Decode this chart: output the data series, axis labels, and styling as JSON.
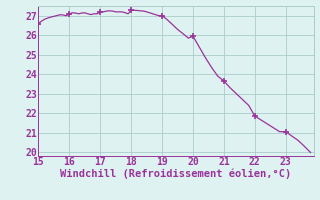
{
  "x": [
    15.0,
    15.1,
    15.2,
    15.3,
    15.4,
    15.5,
    15.6,
    15.7,
    15.8,
    15.9,
    16.0,
    16.1,
    16.2,
    16.3,
    16.4,
    16.5,
    16.6,
    16.7,
    16.8,
    16.9,
    17.0,
    17.1,
    17.2,
    17.3,
    17.4,
    17.5,
    17.6,
    17.7,
    17.8,
    17.9,
    18.0,
    18.1,
    18.2,
    18.3,
    18.4,
    18.5,
    18.6,
    18.7,
    18.8,
    18.9,
    19.0,
    19.15,
    19.3,
    19.5,
    19.7,
    19.85,
    20.0,
    20.2,
    20.4,
    20.6,
    20.8,
    21.0,
    21.2,
    21.4,
    21.6,
    21.8,
    22.0,
    22.2,
    22.4,
    22.6,
    22.8,
    23.0,
    23.2,
    23.4,
    23.6,
    23.8
  ],
  "y": [
    26.6,
    26.72,
    26.82,
    26.88,
    26.93,
    26.97,
    27.01,
    27.05,
    27.04,
    27.0,
    27.1,
    27.15,
    27.14,
    27.1,
    27.14,
    27.15,
    27.1,
    27.06,
    27.1,
    27.1,
    27.2,
    27.2,
    27.24,
    27.25,
    27.24,
    27.2,
    27.2,
    27.2,
    27.16,
    27.1,
    27.28,
    27.28,
    27.27,
    27.25,
    27.24,
    27.2,
    27.15,
    27.1,
    27.05,
    27.0,
    27.0,
    26.82,
    26.6,
    26.3,
    26.05,
    25.85,
    25.95,
    25.4,
    24.85,
    24.35,
    23.9,
    23.65,
    23.3,
    23.0,
    22.7,
    22.4,
    21.85,
    21.65,
    21.45,
    21.25,
    21.05,
    21.05,
    20.82,
    20.6,
    20.3,
    19.98
  ],
  "markers_x": [
    15.0,
    16.0,
    17.0,
    18.0,
    19.0,
    20.0,
    21.0,
    22.0,
    23.0
  ],
  "markers_y": [
    26.6,
    27.1,
    27.2,
    27.28,
    27.0,
    25.95,
    23.65,
    21.85,
    21.05
  ],
  "line_color": "#993399",
  "marker_color": "#993399",
  "bg_color": "#dff2f2",
  "grid_color": "#aacccc",
  "axis_color": "#993399",
  "tick_color": "#993399",
  "xlabel": "Windchill (Refroidissement éolien,°C)",
  "xlim": [
    15,
    23.9
  ],
  "ylim": [
    19.8,
    27.5
  ],
  "xticks": [
    15,
    16,
    17,
    18,
    19,
    20,
    21,
    22,
    23
  ],
  "yticks": [
    20,
    21,
    22,
    23,
    24,
    25,
    26,
    27
  ],
  "font_size": 7.0,
  "label_font_size": 7.5
}
